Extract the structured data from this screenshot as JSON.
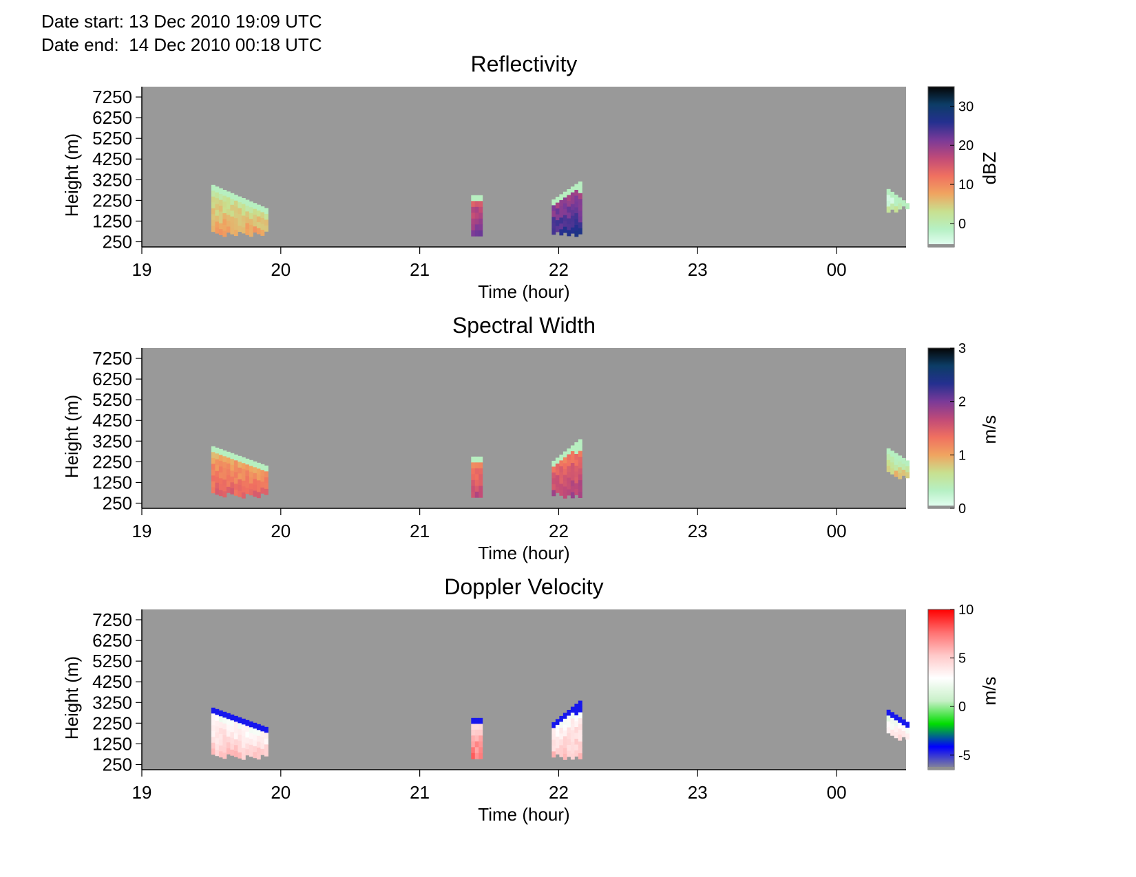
{
  "header": {
    "date_start": "Date start: 13 Dec 2010 19:09 UTC",
    "date_end": "Date end:  14 Dec 2010 00:18 UTC"
  },
  "colors": {
    "background": "#999999",
    "axis": "#000000"
  },
  "chart_data": [
    {
      "type": "heatmap",
      "title": "Reflectivity",
      "xlabel": "Time (hour)",
      "ylabel": "Height (m)",
      "x_ticks": [
        "19",
        "20",
        "21",
        "22",
        "23",
        "00"
      ],
      "y_ticks": [
        250,
        1250,
        2250,
        3250,
        4250,
        5250,
        6250,
        7250
      ],
      "xlim": [
        19,
        24.5
      ],
      "ylim": [
        0,
        7750
      ],
      "colorbar": {
        "label": "dBZ",
        "range": [
          -6,
          35
        ],
        "ticks": [
          0,
          10,
          20,
          30
        ],
        "stops": [
          "#e8fff6",
          "#b6f0c4",
          "#c8e08f",
          "#f0a460",
          "#f07060",
          "#c04a78",
          "#7a3a98",
          "#24308f",
          "#0c3d66",
          "#050505"
        ]
      },
      "regions": [
        {
          "t": [
            19.5,
            19.91
          ],
          "h_bottom": [
            750,
            750
          ],
          "h_top": [
            3000,
            1800
          ],
          "value": 5
        },
        {
          "t": [
            21.37,
            21.45
          ],
          "h_bottom": [
            750,
            750
          ],
          "h_top": [
            2500,
            2500
          ],
          "value": 18
        },
        {
          "t": [
            21.95,
            22.17
          ],
          "h_bottom": [
            750,
            750
          ],
          "h_top": [
            2300,
            3300
          ],
          "value": 22
        },
        {
          "t": [
            24.36,
            24.5
          ],
          "h_bottom": [
            1800,
            2100
          ],
          "h_top": [
            2800,
            2100
          ],
          "value": -2
        }
      ]
    },
    {
      "type": "heatmap",
      "title": "Spectral Width",
      "xlabel": "Time (hour)",
      "ylabel": "Height (m)",
      "x_ticks": [
        "19",
        "20",
        "21",
        "22",
        "23",
        "00"
      ],
      "y_ticks": [
        250,
        1250,
        2250,
        3250,
        4250,
        5250,
        6250,
        7250
      ],
      "xlim": [
        19,
        24.5
      ],
      "ylim": [
        0,
        7750
      ],
      "colorbar": {
        "label": "m/s",
        "range": [
          0,
          3
        ],
        "ticks": [
          0,
          1,
          2,
          3
        ],
        "stops": [
          "#e8fff6",
          "#b6f0c4",
          "#c8e08f",
          "#f0a460",
          "#f07060",
          "#c04a78",
          "#7a3a98",
          "#24308f",
          "#0c3d66",
          "#050505"
        ]
      },
      "regions": [
        {
          "t": [
            19.5,
            19.91
          ],
          "h_bottom": [
            750,
            750
          ],
          "h_top": [
            3000,
            2000
          ],
          "value": 1.2
        },
        {
          "t": [
            21.37,
            21.45
          ],
          "h_bottom": [
            750,
            750
          ],
          "h_top": [
            2500,
            2500
          ],
          "value": 1.4
        },
        {
          "t": [
            21.95,
            22.17
          ],
          "h_bottom": [
            750,
            750
          ],
          "h_top": [
            2300,
            3500
          ],
          "value": 1.5
        },
        {
          "t": [
            24.36,
            24.5
          ],
          "h_bottom": [
            1800,
            1600
          ],
          "h_top": [
            2900,
            2300
          ],
          "value": 0.6
        }
      ]
    },
    {
      "type": "heatmap",
      "title": "Doppler Velocity",
      "xlabel": "Time (hour)",
      "ylabel": "Height (m)",
      "x_ticks": [
        "19",
        "20",
        "21",
        "22",
        "23",
        "00"
      ],
      "y_ticks": [
        250,
        1250,
        2250,
        3250,
        4250,
        5250,
        6250,
        7250
      ],
      "xlim": [
        19,
        24.5
      ],
      "ylim": [
        0,
        7750
      ],
      "colorbar": {
        "label": "m/s",
        "range": [
          -6.5,
          10
        ],
        "ticks": [
          -5,
          0,
          5,
          10
        ],
        "stops": [
          "#909090",
          "#0000ff",
          "#00dd00",
          "#c8f0c8",
          "#ffffff",
          "#ffc8c8",
          "#ff7070",
          "#ff0000"
        ]
      },
      "regions": [
        {
          "t": [
            19.5,
            19.91
          ],
          "h_bottom": [
            750,
            750
          ],
          "h_top": [
            3000,
            2000
          ],
          "value": 4
        },
        {
          "t": [
            21.37,
            21.45
          ],
          "h_bottom": [
            750,
            750
          ],
          "h_top": [
            2500,
            2500
          ],
          "value": 6
        },
        {
          "t": [
            21.95,
            22.17
          ],
          "h_bottom": [
            750,
            750
          ],
          "h_top": [
            2300,
            3500
          ],
          "value": 4
        },
        {
          "t": [
            24.36,
            24.5
          ],
          "h_bottom": [
            1800,
            1600
          ],
          "h_top": [
            2900,
            2300
          ],
          "value": 3
        }
      ]
    }
  ]
}
